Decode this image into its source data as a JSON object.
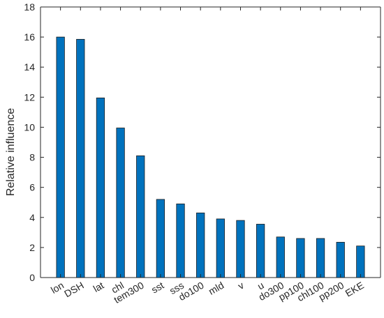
{
  "chart_data": {
    "type": "bar",
    "categories": [
      "lon",
      "DSH",
      "lat",
      "chl",
      "tem300",
      "sst",
      "sss",
      "do100",
      "mld",
      "v",
      "u",
      "do300",
      "pp100",
      "chl100",
      "pp200",
      "EKE"
    ],
    "values": [
      16.0,
      15.85,
      11.95,
      9.95,
      8.1,
      5.2,
      4.9,
      4.3,
      3.9,
      3.8,
      3.55,
      2.7,
      2.6,
      2.6,
      2.35,
      2.1
    ],
    "title": "",
    "xlabel": "",
    "ylabel": "Relative influence",
    "ylim": [
      0,
      18
    ],
    "yticks": [
      0,
      2,
      4,
      6,
      8,
      10,
      12,
      14,
      16,
      18
    ],
    "grid": false,
    "bar_color": "#0072BD",
    "bar_edge_color": "#1a1a1a"
  }
}
